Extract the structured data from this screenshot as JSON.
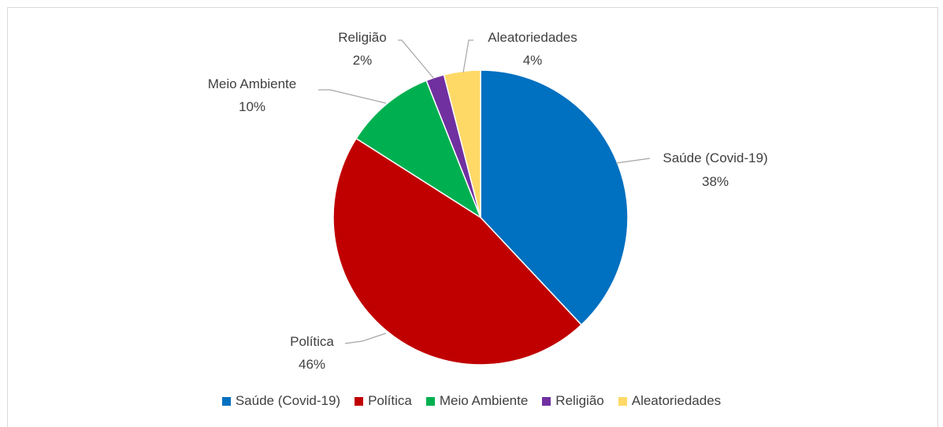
{
  "chart_data": {
    "type": "pie",
    "title": "",
    "slices": [
      {
        "label": "Saúde (Covid-19)",
        "value": 38,
        "value_label": "38%",
        "color": "#0070C0"
      },
      {
        "label": "Política",
        "value": 46,
        "value_label": "46%",
        "color": "#C00000"
      },
      {
        "label": "Meio Ambiente",
        "value": 10,
        "value_label": "10%",
        "color": "#00B050"
      },
      {
        "label": "Religião",
        "value": 2,
        "value_label": "2%",
        "color": "#7030A0"
      },
      {
        "label": "Aleatoriedades",
        "value": 4,
        "value_label": "4%",
        "color": "#FFD966"
      }
    ],
    "legend": {
      "position": "bottom",
      "entries": [
        "Saúde (Covid-19)",
        "Política",
        "Meio Ambiente",
        "Religião",
        "Aleatoriedades"
      ]
    },
    "start_angle": "12 o'clock",
    "direction": "clockwise"
  }
}
